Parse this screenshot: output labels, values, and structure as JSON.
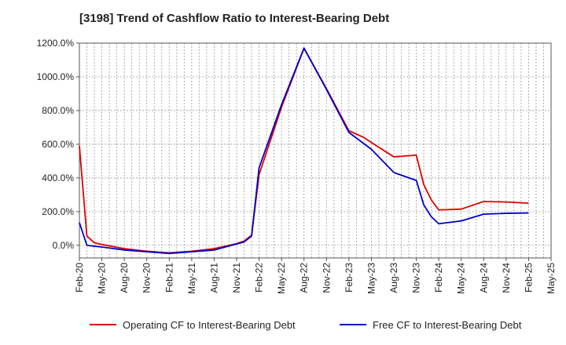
{
  "chart_data": {
    "type": "line",
    "title": "[3198]  Trend of Cashflow Ratio to Interest-Bearing Debt",
    "xlabel": "",
    "ylabel": "",
    "x_tick_labels": [
      "Feb-20",
      "May-20",
      "Aug-20",
      "Nov-20",
      "Feb-21",
      "May-21",
      "Aug-21",
      "Nov-21",
      "Feb-22",
      "May-22",
      "Aug-22",
      "Nov-22",
      "Feb-23",
      "May-23",
      "Aug-23",
      "Nov-23",
      "Feb-24",
      "May-24",
      "Aug-24",
      "Nov-24",
      "Feb-25",
      "May-25"
    ],
    "y_tick_labels": [
      "0.0%",
      "200.0%",
      "400.0%",
      "600.0%",
      "800.0%",
      "1000.0%",
      "1200.0%"
    ],
    "y_ticks": [
      0,
      200,
      400,
      600,
      800,
      1000,
      1200
    ],
    "ylim": [
      -75,
      1200
    ],
    "x_range_months": [
      0,
      63
    ],
    "grid": true,
    "legend_position": "bottom",
    "series": [
      {
        "name": "Operating CF to Interest-Bearing Debt",
        "color": "#e00000",
        "points": [
          {
            "m": 0,
            "v": 590
          },
          {
            "m": 1,
            "v": 55
          },
          {
            "m": 2,
            "v": 15
          },
          {
            "m": 3,
            "v": 5
          },
          {
            "m": 6,
            "v": -20
          },
          {
            "m": 9,
            "v": -35
          },
          {
            "m": 12,
            "v": -45
          },
          {
            "m": 15,
            "v": -35
          },
          {
            "m": 18,
            "v": -20
          },
          {
            "m": 21,
            "v": 10
          },
          {
            "m": 22,
            "v": 25
          },
          {
            "m": 23,
            "v": 60
          },
          {
            "m": 24,
            "v": 420
          },
          {
            "m": 27,
            "v": 820
          },
          {
            "m": 30,
            "v": 1170
          },
          {
            "m": 33,
            "v": 930
          },
          {
            "m": 36,
            "v": 680
          },
          {
            "m": 38,
            "v": 640
          },
          {
            "m": 39,
            "v": 610
          },
          {
            "m": 42,
            "v": 525
          },
          {
            "m": 45,
            "v": 535
          },
          {
            "m": 46,
            "v": 360
          },
          {
            "m": 47,
            "v": 270
          },
          {
            "m": 48,
            "v": 210
          },
          {
            "m": 51,
            "v": 215
          },
          {
            "m": 54,
            "v": 260
          },
          {
            "m": 57,
            "v": 257
          },
          {
            "m": 60,
            "v": 250
          }
        ]
      },
      {
        "name": "Free CF to Interest-Bearing Debt",
        "color": "#0000cc",
        "points": [
          {
            "m": 0,
            "v": 135
          },
          {
            "m": 1,
            "v": 0
          },
          {
            "m": 2,
            "v": -5
          },
          {
            "m": 3,
            "v": -10
          },
          {
            "m": 6,
            "v": -28
          },
          {
            "m": 9,
            "v": -38
          },
          {
            "m": 12,
            "v": -48
          },
          {
            "m": 15,
            "v": -38
          },
          {
            "m": 18,
            "v": -28
          },
          {
            "m": 21,
            "v": 8
          },
          {
            "m": 22,
            "v": 20
          },
          {
            "m": 23,
            "v": 55
          },
          {
            "m": 24,
            "v": 460
          },
          {
            "m": 27,
            "v": 835
          },
          {
            "m": 30,
            "v": 1170
          },
          {
            "m": 33,
            "v": 925
          },
          {
            "m": 36,
            "v": 670
          },
          {
            "m": 39,
            "v": 570
          },
          {
            "m": 42,
            "v": 432
          },
          {
            "m": 45,
            "v": 385
          },
          {
            "m": 46,
            "v": 240
          },
          {
            "m": 47,
            "v": 170
          },
          {
            "m": 48,
            "v": 128
          },
          {
            "m": 51,
            "v": 145
          },
          {
            "m": 54,
            "v": 185
          },
          {
            "m": 57,
            "v": 190
          },
          {
            "m": 60,
            "v": 192
          }
        ]
      }
    ]
  }
}
